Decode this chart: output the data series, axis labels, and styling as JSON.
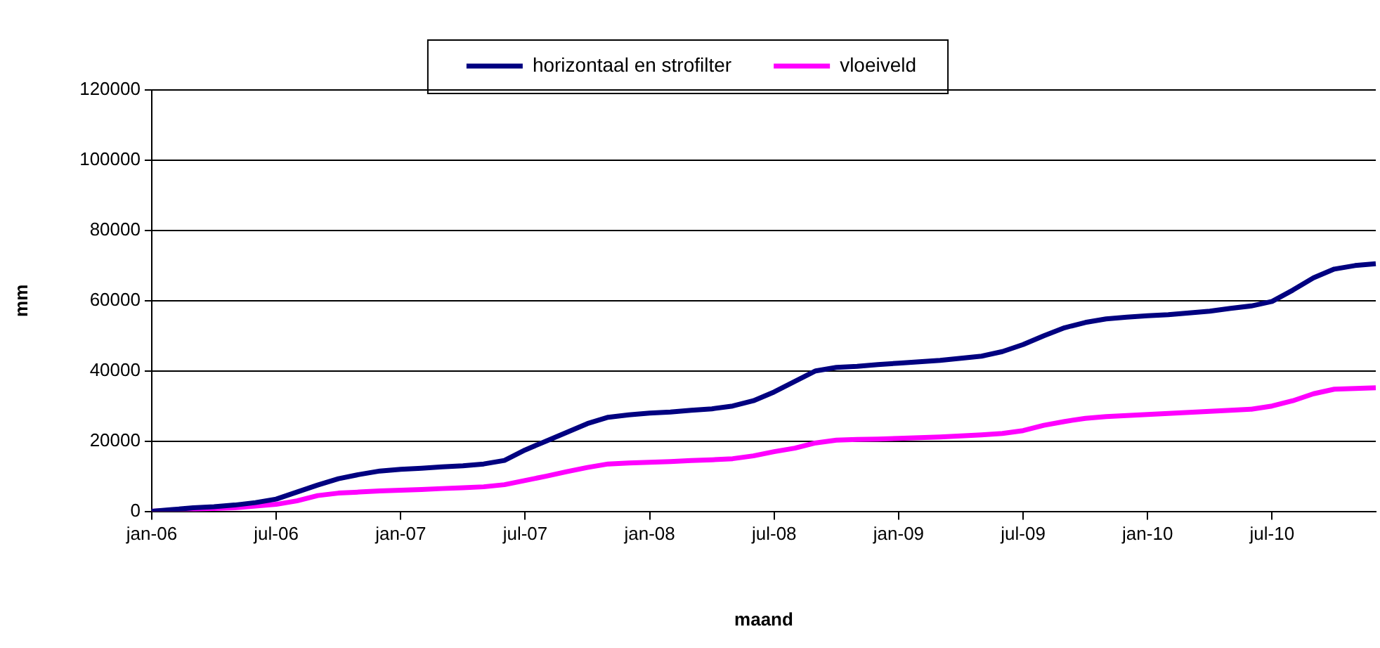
{
  "chart_data": {
    "type": "line",
    "xlabel": "maand",
    "ylabel": "mm",
    "categories": [
      "jan-06",
      null,
      null,
      null,
      null,
      null,
      "jul-06",
      null,
      null,
      null,
      null,
      null,
      "jan-07",
      null,
      null,
      null,
      null,
      null,
      "jul-07",
      null,
      null,
      null,
      null,
      null,
      "jan-08",
      null,
      null,
      null,
      null,
      null,
      "jul-08",
      null,
      null,
      null,
      null,
      null,
      "jan-09",
      null,
      null,
      null,
      null,
      null,
      "jul-09",
      null,
      null,
      null,
      null,
      null,
      "jan-10",
      null,
      null,
      null,
      null,
      null,
      "jul-10",
      null,
      null,
      null,
      null,
      null
    ],
    "series": [
      {
        "name": "horizontaal en strofilter",
        "color": "#000080",
        "values": [
          0,
          500,
          1000,
          1300,
          1800,
          2500,
          3500,
          5500,
          7500,
          9300,
          10500,
          11500,
          12000,
          12300,
          12700,
          13000,
          13500,
          14500,
          17500,
          20000,
          22500,
          25000,
          26800,
          27500,
          28000,
          28300,
          28800,
          29200,
          30000,
          31500,
          34000,
          37000,
          40000,
          41000,
          41300,
          41800,
          42200,
          42600,
          43000,
          43600,
          44200,
          45500,
          47500,
          50000,
          52300,
          53800,
          54800,
          55300,
          55700,
          56000,
          56500,
          57000,
          57800,
          58500,
          59800,
          63000,
          66500,
          69000,
          70000,
          70500
        ]
      },
      {
        "name": "vloeiveld",
        "color": "#ff00ff",
        "values": [
          0,
          300,
          600,
          800,
          1000,
          1500,
          2000,
          3000,
          4500,
          5200,
          5500,
          5800,
          6000,
          6200,
          6500,
          6700,
          7000,
          7600,
          8800,
          10000,
          11300,
          12500,
          13500,
          13800,
          14000,
          14200,
          14500,
          14700,
          15000,
          15800,
          17000,
          18000,
          19500,
          20300,
          20500,
          20600,
          20800,
          21000,
          21200,
          21500,
          21800,
          22200,
          23000,
          24500,
          25600,
          26500,
          27000,
          27300,
          27600,
          27900,
          28200,
          28500,
          28800,
          29100,
          30000,
          31500,
          33500,
          34800,
          35000,
          35200
        ]
      }
    ],
    "ylim": [
      0,
      120000
    ],
    "yticks": [
      0,
      20000,
      40000,
      60000,
      80000,
      100000,
      120000
    ],
    "grid": "y",
    "legend": "top",
    "marker": "none",
    "line_style": "solid"
  }
}
